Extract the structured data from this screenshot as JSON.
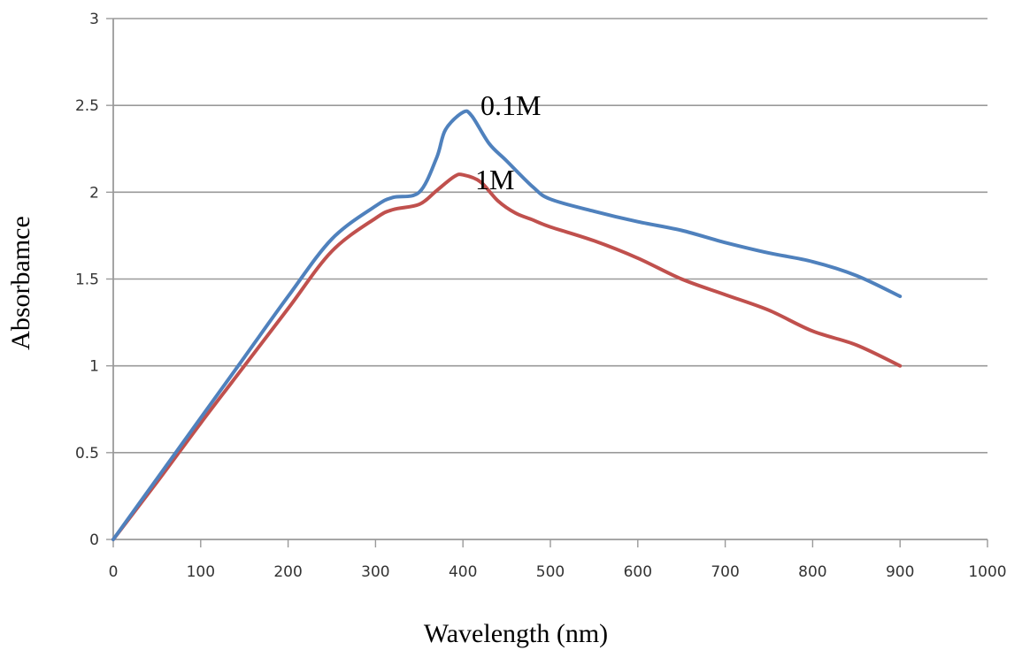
{
  "chart_data": {
    "type": "line",
    "xlabel": "Wavelength (nm)",
    "ylabel": "Absorbamce",
    "xlim": [
      0,
      1000
    ],
    "ylim": [
      0,
      3
    ],
    "xticks": [
      "0",
      "100",
      "200",
      "300",
      "400",
      "500",
      "600",
      "700",
      "800",
      "900",
      "1000"
    ],
    "yticks": [
      "0",
      "0.5",
      "1",
      "1.5",
      "2",
      "2.5",
      "3"
    ],
    "grid": "horizontal",
    "legend": "none",
    "series": [
      {
        "name": "0.1M",
        "color": "#4f81bd",
        "x": [
          0,
          50,
          100,
          150,
          200,
          250,
          300,
          320,
          350,
          370,
          380,
          400,
          410,
          430,
          450,
          480,
          500,
          550,
          600,
          650,
          700,
          750,
          800,
          850,
          900
        ],
        "y": [
          0,
          0.35,
          0.7,
          1.05,
          1.4,
          1.73,
          1.92,
          1.97,
          2.0,
          2.2,
          2.36,
          2.46,
          2.44,
          2.28,
          2.18,
          2.03,
          1.96,
          1.89,
          1.83,
          1.78,
          1.71,
          1.65,
          1.6,
          1.52,
          1.4
        ]
      },
      {
        "name": "1M",
        "color": "#c0504d",
        "x": [
          0,
          50,
          100,
          150,
          200,
          250,
          300,
          320,
          350,
          370,
          390,
          400,
          420,
          440,
          460,
          480,
          500,
          550,
          600,
          650,
          700,
          750,
          800,
          850,
          900
        ],
        "y": [
          0,
          0.33,
          0.67,
          1.0,
          1.33,
          1.66,
          1.85,
          1.9,
          1.93,
          2.01,
          2.09,
          2.1,
          2.06,
          1.95,
          1.88,
          1.84,
          1.8,
          1.72,
          1.62,
          1.5,
          1.41,
          1.32,
          1.2,
          1.12,
          1.0
        ]
      }
    ]
  }
}
